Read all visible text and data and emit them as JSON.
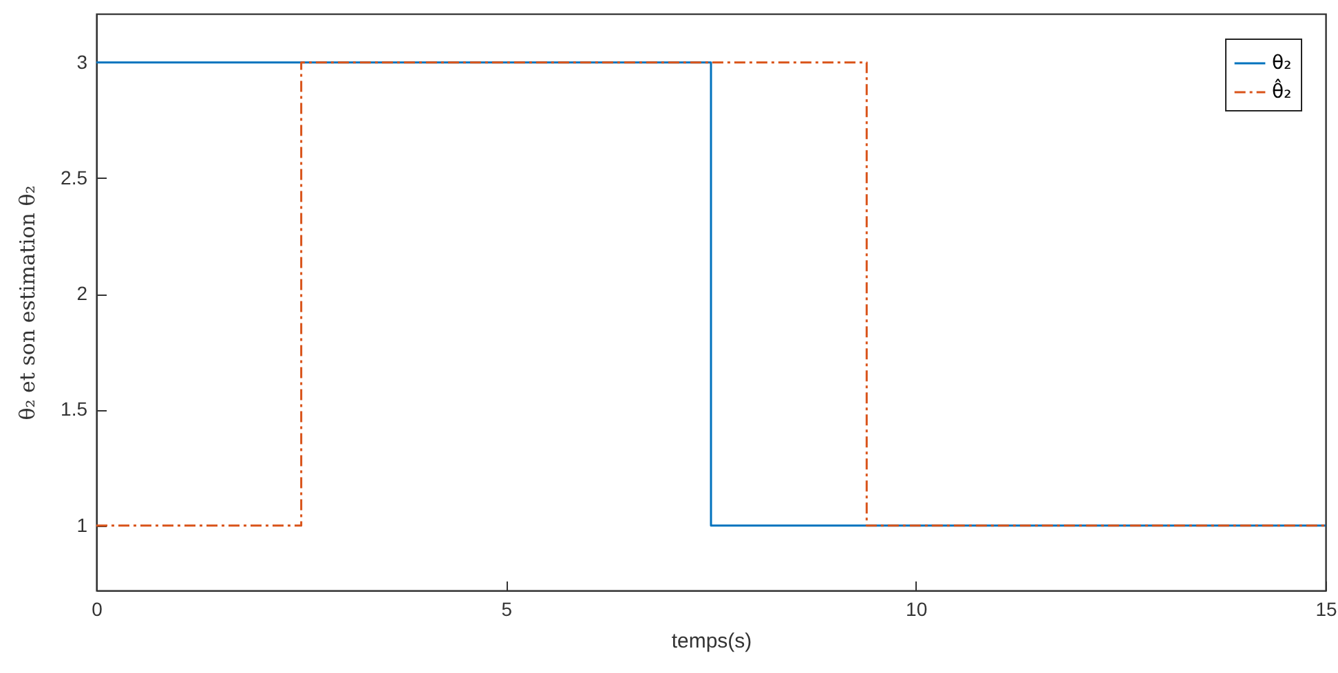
{
  "chart_data": {
    "type": "step",
    "xlabel": "temps(s)",
    "ylabel": "θ₂ et son estimation θ₂",
    "xlim": [
      0,
      15
    ],
    "xticks": [
      0,
      5,
      10,
      15
    ],
    "ylim": [
      0.72,
      3.21
    ],
    "yticks": [
      1,
      1.5,
      2,
      2.5,
      3
    ],
    "grid": false,
    "legend": "top right",
    "series": [
      {
        "name": "θ₂",
        "color": "#0072bd",
        "line_style": "solid",
        "x": [
          0,
          7.5,
          15
        ],
        "values": [
          3,
          1,
          1
        ]
      },
      {
        "name": "θ̂₂",
        "color": "#d95319",
        "line_style": "dashed",
        "x": [
          0,
          2.5,
          9.4,
          15
        ],
        "values": [
          1,
          3,
          1,
          1
        ]
      }
    ]
  }
}
